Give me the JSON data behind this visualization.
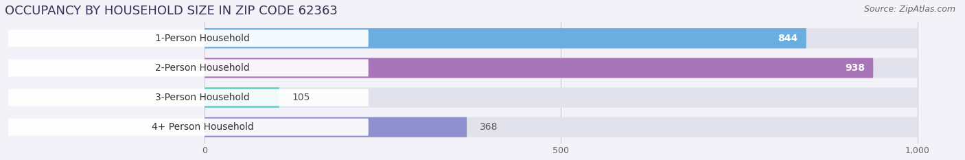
{
  "title": "OCCUPANCY BY HOUSEHOLD SIZE IN ZIP CODE 62363",
  "source": "Source: ZipAtlas.com",
  "categories": [
    "1-Person Household",
    "2-Person Household",
    "3-Person Household",
    "4+ Person Household"
  ],
  "values": [
    844,
    938,
    105,
    368
  ],
  "bar_colors": [
    "#6aaee0",
    "#a876b8",
    "#50c8c0",
    "#9090d0"
  ],
  "label_colors": [
    "white",
    "white",
    "dark",
    "dark"
  ],
  "xlim_left": -280,
  "xlim_right": 1060,
  "xticks": [
    0,
    500,
    1000
  ],
  "xticklabels": [
    "0",
    "500",
    "1,000"
  ],
  "background_color": "#f2f2f8",
  "bar_bg_color": "#e2e2ec",
  "bar_height": 0.68,
  "label_box_color": "white",
  "title_fontsize": 13,
  "source_fontsize": 9,
  "label_fontsize": 10,
  "value_fontsize": 10,
  "tick_fontsize": 9
}
